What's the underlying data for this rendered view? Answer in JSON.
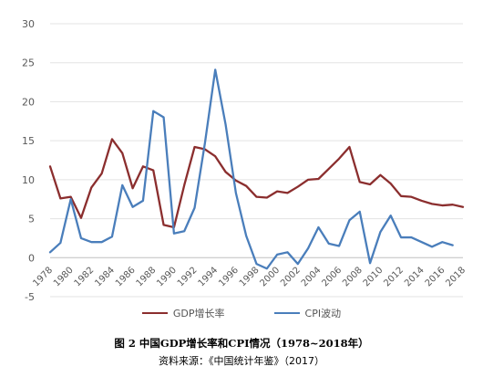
{
  "chart_data": {
    "type": "line",
    "title": "",
    "xlabel": "",
    "ylabel": "",
    "ylim": [
      -5,
      30
    ],
    "yticks": [
      -5,
      0,
      5,
      10,
      15,
      20,
      25,
      30
    ],
    "x": [
      1978,
      1979,
      1980,
      1981,
      1982,
      1983,
      1984,
      1985,
      1986,
      1987,
      1988,
      1989,
      1990,
      1991,
      1992,
      1993,
      1994,
      1995,
      1996,
      1997,
      1998,
      1999,
      2000,
      2001,
      2002,
      2003,
      2004,
      2005,
      2006,
      2007,
      2008,
      2009,
      2010,
      2011,
      2012,
      2013,
      2014,
      2015,
      2016,
      2017,
      2018
    ],
    "xtick_labels": [
      "1978",
      "1980",
      "1982",
      "1984",
      "1986",
      "1988",
      "1990",
      "1992",
      "1994",
      "1996",
      "1998",
      "2000",
      "2002",
      "2004",
      "2006",
      "2008",
      "2010",
      "2012",
      "2014",
      "2016",
      "2018"
    ],
    "grid": true,
    "legend_position": "bottom",
    "series": [
      {
        "name": "GDP增长率",
        "color": "#8B2E2E",
        "values": [
          11.7,
          7.6,
          7.8,
          5.1,
          9.0,
          10.8,
          15.2,
          13.4,
          8.9,
          11.7,
          11.2,
          4.2,
          3.9,
          9.3,
          14.2,
          13.9,
          13.0,
          11.0,
          9.9,
          9.2,
          7.8,
          7.7,
          8.5,
          8.3,
          9.1,
          10.0,
          10.1,
          11.4,
          12.7,
          14.2,
          9.7,
          9.4,
          10.6,
          9.5,
          7.9,
          7.8,
          7.3,
          6.9,
          6.7,
          6.8,
          6.5
        ]
      },
      {
        "name": "CPI波动",
        "color": "#4A7EBB",
        "values": [
          0.7,
          1.9,
          7.5,
          2.5,
          2.0,
          2.0,
          2.7,
          9.3,
          6.5,
          7.3,
          18.8,
          18.0,
          3.1,
          3.4,
          6.4,
          14.7,
          24.1,
          17.1,
          8.3,
          2.8,
          -0.8,
          -1.4,
          0.4,
          0.7,
          -0.8,
          1.2,
          3.9,
          1.8,
          1.5,
          4.8,
          5.9,
          -0.7,
          3.3,
          5.4,
          2.6,
          2.6,
          2.0,
          1.4,
          2.0,
          1.6,
          null
        ]
      }
    ]
  },
  "caption": {
    "title": "图 2   中国GDP增长率和CPI情况（1978~2018年）",
    "source": "资料来源：《中国统计年鉴》（2017）"
  }
}
